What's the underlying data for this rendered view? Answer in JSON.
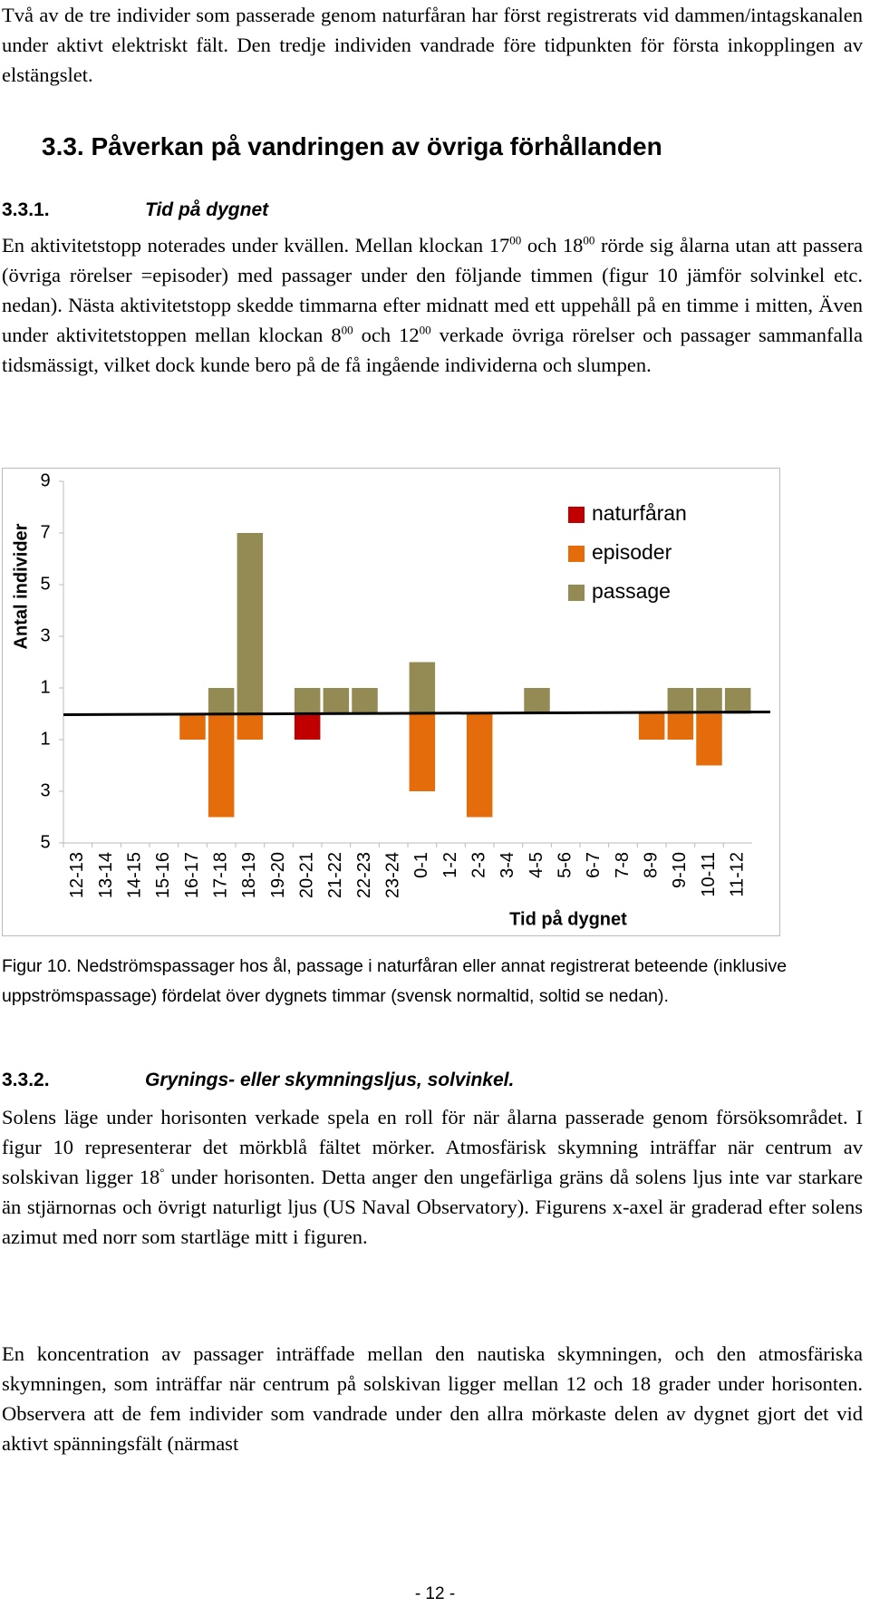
{
  "body": {
    "p1": "Två av de tre individer som passerade genom naturfåran har först registrerats vid dammen/intagskanalen under aktivt elektriskt fält. Den tredje individen vandrade före tidpunkten för första inkopplingen av elstängslet.",
    "h1_number": "3.3.",
    "h1_text": "Påverkan på vandringen av övriga förhållanden",
    "h2_number": "3.3.1.",
    "h2_text": "Tid på dygnet",
    "p2": [
      "En aktivitetstopp noterades under kvällen. Mellan klockan 17",
      "00",
      " och 18",
      "00",
      " rörde sig ålarna utan att passera (övriga rörelser =episoder) med passager under den följande timmen (figur 10 jämför solvinkel etc. nedan). Nästa aktivitetstopp skedde timmarna efter midnatt med ett uppehåll på en timme i mitten, Även under aktivitetstoppen mellan klockan 8",
      "00",
      " och 12",
      "00",
      " verkade övriga rörelser och passager sammanfalla tidsmässigt, vilket dock kunde bero på de få ingående individerna och slumpen."
    ],
    "caption": "Figur 10. Nedströmspassager hos ål, passage i naturfåran eller annat registrerat beteende (inklusive uppströmspassage) fördelat över dygnets timmar (svensk normaltid, soltid se nedan).",
    "h3_number": "3.3.2.",
    "h3_text": "Grynings- eller skymningsljus, solvinkel.",
    "p3": [
      "Solens läge under horisonten verkade spela en roll för när ålarna passerade genom försöksområdet. I figur 10 representerar det mörkblå fältet mörker. Atmosfärisk skymning inträffar när centrum av solskivan ligger 18",
      "°",
      " under horisonten. Detta anger den ungefärliga gräns då solens ljus inte var starkare än stjärnornas och övrigt naturligt ljus (US Naval Observatory). Figurens x-axel är graderad efter solens azimut med norr som startläge mitt i figuren."
    ],
    "p4": "En koncentration av passager inträffade mellan den nautiska skymningen, och den atmosfäriska skymningen, som inträffar när centrum på solskivan ligger mellan 12 och 18 grader under horisonten. Observera att de fem individer som vandrade under den allra mörkaste delen av dygnet gjort det vid aktivt spänningsfält (närmast",
    "page_number": "- 12 -"
  },
  "chart_data": {
    "type": "bar",
    "x_label": "Tid på dygnet",
    "y_label": "Antal individer",
    "categories": [
      "12-13",
      "13-14",
      "14-15",
      "15-16",
      "16-17",
      "17-18",
      "18-19",
      "19-20",
      "20-21",
      "21-22",
      "22-23",
      "23-24",
      "0-1",
      "1-2",
      "2-3",
      "3-4",
      "4-5",
      "5-6",
      "6-7",
      "7-8",
      "8-9",
      "9-10",
      "10-11",
      "11-12"
    ],
    "series": [
      {
        "name": "naturfåran",
        "color": "#c00000",
        "values": [
          null,
          null,
          null,
          null,
          null,
          null,
          null,
          null,
          -1,
          null,
          null,
          null,
          null,
          null,
          null,
          null,
          null,
          null,
          null,
          null,
          null,
          null,
          null,
          null
        ]
      },
      {
        "name": "episoder",
        "color": "#e46c0a",
        "values": [
          null,
          null,
          null,
          null,
          -1,
          -4,
          -1,
          null,
          null,
          null,
          null,
          null,
          -3,
          null,
          -4,
          null,
          null,
          null,
          null,
          null,
          -1,
          -1,
          -2,
          null
        ]
      },
      {
        "name": "passage",
        "color": "#948a54",
        "values": [
          null,
          null,
          null,
          null,
          null,
          1,
          7,
          null,
          1,
          1,
          1,
          null,
          2,
          null,
          null,
          null,
          1,
          null,
          null,
          null,
          null,
          1,
          1,
          1
        ]
      }
    ],
    "ylim": [
      -5,
      9
    ],
    "yticks": [
      9,
      7,
      5,
      3,
      1,
      {
        "value": -1,
        "label": "1"
      },
      {
        "value": -3,
        "label": "3"
      },
      {
        "value": -5,
        "label": "5"
      }
    ],
    "legend": "upper right"
  }
}
